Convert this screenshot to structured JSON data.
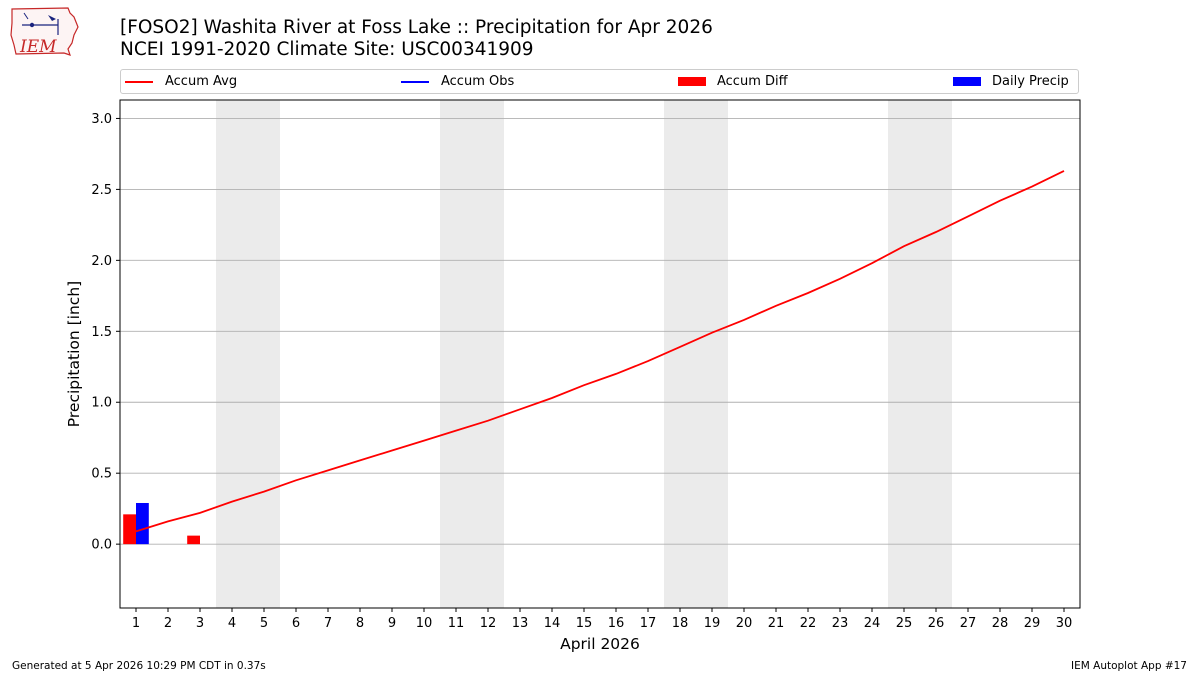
{
  "title_line1": "[FOSO2] Washita River at Foss Lake :: Precipitation for Apr 2026",
  "title_line2": "NCEI 1991-2020 Climate Site: USC00341909",
  "logo_text": "IEM",
  "legend": [
    {
      "label": "Accum Avg",
      "kind": "line",
      "color": "#ff0000"
    },
    {
      "label": "Accum Obs",
      "kind": "line",
      "color": "#0000ff"
    },
    {
      "label": "Accum Diff",
      "kind": "box",
      "color": "#ff0000"
    },
    {
      "label": "Daily Precip",
      "kind": "box",
      "color": "#0000ff"
    }
  ],
  "chart_data": {
    "type": "bar+line",
    "xlabel": "April 2026",
    "ylabel": "Precipitation [inch]",
    "ylim": [
      -0.45,
      3.13
    ],
    "xlim": [
      0.5,
      30.5
    ],
    "yticks": [
      0.0,
      0.5,
      1.0,
      1.5,
      2.0,
      2.5,
      3.0
    ],
    "ytick_labels": [
      "0.0",
      "0.5",
      "1.0",
      "1.5",
      "2.0",
      "2.5",
      "3.0"
    ],
    "x": [
      1,
      2,
      3,
      4,
      5,
      6,
      7,
      8,
      9,
      10,
      11,
      12,
      13,
      14,
      15,
      16,
      17,
      18,
      19,
      20,
      21,
      22,
      23,
      24,
      25,
      26,
      27,
      28,
      29,
      30
    ],
    "weekend_days": [
      4,
      5,
      11,
      12,
      18,
      19,
      25,
      26
    ],
    "grid": "y",
    "series": [
      {
        "name": "Accum Avg",
        "type": "line",
        "color": "#ff0000",
        "values": [
          0.09,
          0.16,
          0.22,
          0.3,
          0.37,
          0.45,
          0.52,
          0.59,
          0.66,
          0.73,
          0.8,
          0.87,
          0.95,
          1.03,
          1.12,
          1.2,
          1.29,
          1.39,
          1.49,
          1.58,
          1.68,
          1.77,
          1.87,
          1.98,
          2.1,
          2.2,
          2.31,
          2.42,
          2.52,
          2.63
        ]
      },
      {
        "name": "Accum Diff",
        "type": "bar",
        "color": "#ff0000",
        "x": [
          1,
          3
        ],
        "values": [
          0.21,
          0.06
        ]
      },
      {
        "name": "Daily Precip",
        "type": "bar",
        "color": "#0000ff",
        "x": [
          1
        ],
        "values": [
          0.29
        ]
      }
    ]
  },
  "footer_left": "Generated at 5 Apr 2026 10:29 PM CDT in 0.37s",
  "footer_right": "IEM Autoplot App #17"
}
